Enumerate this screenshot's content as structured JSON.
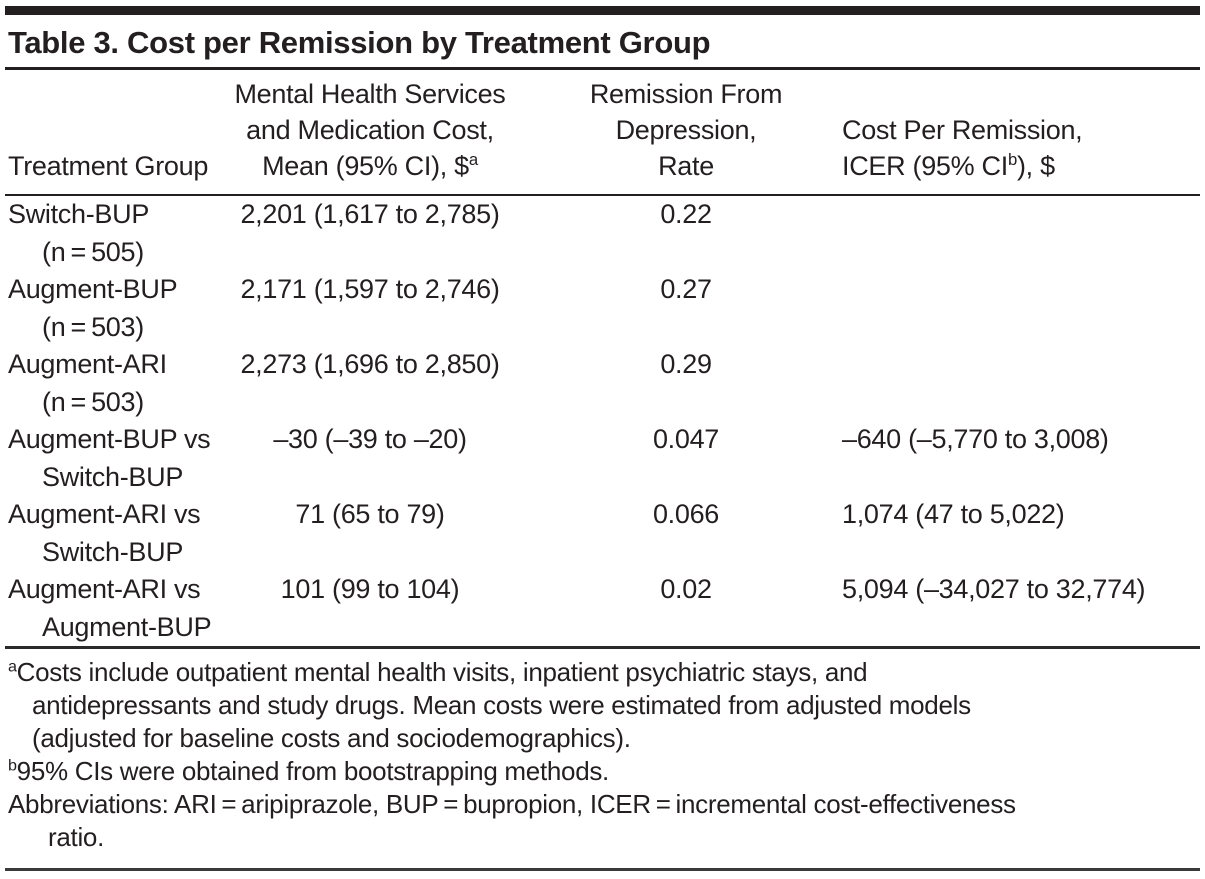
{
  "colors": {
    "text": "#231f20",
    "rule": "#231f20",
    "top_bar": "#231f20"
  },
  "title": "Table 3. Cost per Remission by Treatment Group",
  "table": {
    "header": {
      "col1": "Treatment Group",
      "col2": {
        "line1": "Mental Health Services",
        "line2": "and Medication Cost,",
        "line3_pre": "Mean (95% CI), $",
        "sup": "a"
      },
      "col3": {
        "line1": "Remission From",
        "line2": "Depression,",
        "line3": "Rate"
      },
      "col4": {
        "line1": "Cost Per Remission,",
        "line2_pre": "ICER (95% CI",
        "sup": "b",
        "line2_post": "), $"
      }
    },
    "rows": [
      {
        "group": "Switch-BUP",
        "group_sub": "(n = 505)",
        "cost": "2,201 (1,617 to 2,785)",
        "rate": "0.22",
        "icer": ""
      },
      {
        "group": "Augment-BUP",
        "group_sub": "(n = 503)",
        "cost": "2,171 (1,597 to 2,746)",
        "rate": "0.27",
        "icer": ""
      },
      {
        "group": "Augment-ARI",
        "group_sub": "(n = 503)",
        "cost": "2,273 (1,696 to 2,850)",
        "rate": "0.29",
        "icer": ""
      },
      {
        "group": "Augment-BUP vs",
        "group_sub": "Switch-BUP",
        "cost": "–30 (–39 to –20)",
        "rate": "0.047",
        "icer": "–640 (–5,770 to 3,008)"
      },
      {
        "group": "Augment-ARI vs",
        "group_sub": "Switch-BUP",
        "cost": "71 (65 to 79)",
        "rate": "0.066",
        "icer": "1,074 (47 to 5,022)"
      },
      {
        "group": "Augment-ARI vs",
        "group_sub": "Augment-BUP",
        "cost": "101 (99 to 104)",
        "rate": "0.02",
        "icer": "5,094 (–34,027 to 32,774)"
      }
    ]
  },
  "footnotes": {
    "a": {
      "marker": "a",
      "line1": "Costs include outpatient mental health visits, inpatient psychiatric stays, and",
      "line2": "antidepressants and study drugs. Mean costs were estimated from adjusted models",
      "line3": "(adjusted for baseline costs and sociodemographics)."
    },
    "b": {
      "marker": "b",
      "line1": "95% CIs were obtained from bootstrapping methods."
    },
    "abbreviations": {
      "line1": "Abbreviations: ARI = aripiprazole, BUP = bupropion, ICER = incremental cost-effectiveness",
      "line2": "ratio."
    }
  }
}
